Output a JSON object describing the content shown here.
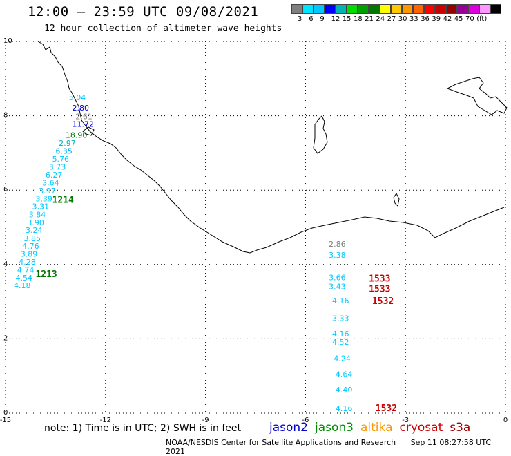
{
  "header": {
    "title": "12:00 – 23:59 UTC 09/08/2021",
    "subtitle": "12 hour collection of altimeter wave heights"
  },
  "scale": {
    "colors": [
      "#7f7f7f",
      "#00e5ff",
      "#00c8ff",
      "#0000ff",
      "#00b4b4",
      "#00dc00",
      "#00a000",
      "#007800",
      "#ffff00",
      "#ffc800",
      "#ff9600",
      "#ff6400",
      "#ff0000",
      "#c80000",
      "#960000",
      "#960096",
      "#dc00dc",
      "#ff96ff",
      "#000000"
    ],
    "labels": [
      "3",
      "6",
      "9",
      "12",
      "15",
      "18",
      "21",
      "24",
      "27",
      "30",
      "33",
      "36",
      "39",
      "42",
      "45",
      "70",
      "(ft)"
    ]
  },
  "axes": {
    "x_ticks": [
      "-15",
      "-12",
      "-9",
      "-6",
      "-3",
      "0"
    ],
    "y_ticks": [
      "0",
      "2",
      "4",
      "6",
      "8",
      "10"
    ]
  },
  "chart_data": {
    "type": "scatter",
    "xlim": [
      -15,
      0
    ],
    "ylim": [
      0,
      10
    ],
    "grid": true,
    "wave_heights": [
      {
        "lon": -13.1,
        "lat": 8.42,
        "label": "5.04",
        "color": "#00c8ff"
      },
      {
        "lon": -13.0,
        "lat": 8.14,
        "label": "2.80",
        "color": "#0000c8"
      },
      {
        "lon": -12.9,
        "lat": 7.91,
        "label": "2.61",
        "color": "#7f7f7f"
      },
      {
        "lon": -13.0,
        "lat": 7.7,
        "label": "11.72",
        "color": "#0000ff"
      },
      {
        "lon": -13.2,
        "lat": 7.41,
        "label": "18.90",
        "color": "#007800"
      },
      {
        "lon": -13.4,
        "lat": 7.19,
        "label": "2.97",
        "color": "#00b4b4"
      },
      {
        "lon": -13.5,
        "lat": 6.98,
        "label": "6.35",
        "color": "#00b4ff"
      },
      {
        "lon": -13.6,
        "lat": 6.77,
        "label": "5.76",
        "color": "#00c8ff"
      },
      {
        "lon": -13.7,
        "lat": 6.55,
        "label": "3.73",
        "color": "#00c8ff"
      },
      {
        "lon": -13.8,
        "lat": 6.34,
        "label": "6.27",
        "color": "#00c8ff"
      },
      {
        "lon": -13.9,
        "lat": 6.12,
        "label": "3.64",
        "color": "#00c8ff"
      },
      {
        "lon": -14.0,
        "lat": 5.91,
        "label": "3.97",
        "color": "#00c8ff"
      },
      {
        "lon": -14.1,
        "lat": 5.7,
        "label": "3.39",
        "color": "#00c8ff"
      },
      {
        "lon": -14.2,
        "lat": 5.49,
        "label": "3.31",
        "color": "#00c8ff"
      },
      {
        "lon": -14.3,
        "lat": 5.27,
        "label": "3.84",
        "color": "#00c8ff"
      },
      {
        "lon": -14.35,
        "lat": 5.06,
        "label": "3.90",
        "color": "#00c8ff"
      },
      {
        "lon": -14.4,
        "lat": 4.85,
        "label": "3.24",
        "color": "#00c8ff"
      },
      {
        "lon": -14.45,
        "lat": 4.63,
        "label": "3.85",
        "color": "#00c8ff"
      },
      {
        "lon": -14.5,
        "lat": 4.42,
        "label": "4.76",
        "color": "#00c8ff"
      },
      {
        "lon": -14.55,
        "lat": 4.21,
        "label": "3.89",
        "color": "#00c8ff"
      },
      {
        "lon": -14.6,
        "lat": 4.0,
        "label": "4.28",
        "color": "#00c8ff"
      },
      {
        "lon": -14.65,
        "lat": 3.78,
        "label": "4.74",
        "color": "#00c8ff"
      },
      {
        "lon": -14.7,
        "lat": 3.57,
        "label": "4.54",
        "color": "#00c8ff"
      },
      {
        "lon": -14.75,
        "lat": 3.36,
        "label": "4.18",
        "color": "#00c8ff"
      },
      {
        "lon": -5.3,
        "lat": 4.48,
        "label": "2.86",
        "color": "#7f7f7f"
      },
      {
        "lon": -5.3,
        "lat": 4.18,
        "label": "3.38",
        "color": "#00c8ff"
      },
      {
        "lon": -5.3,
        "lat": 3.58,
        "label": "3.66",
        "color": "#00c8ff"
      },
      {
        "lon": -5.3,
        "lat": 3.34,
        "label": "3.43",
        "color": "#00c8ff"
      },
      {
        "lon": -5.2,
        "lat": 2.96,
        "label": "4.16",
        "color": "#00c8ff"
      },
      {
        "lon": -5.2,
        "lat": 2.48,
        "label": "3.33",
        "color": "#00c8ff"
      },
      {
        "lon": -5.2,
        "lat": 2.06,
        "label": "4.16",
        "color": "#00c8ff"
      },
      {
        "lon": -5.2,
        "lat": 1.84,
        "label": "4.52",
        "color": "#00c8ff"
      },
      {
        "lon": -5.15,
        "lat": 1.4,
        "label": "4.24",
        "color": "#00c8ff"
      },
      {
        "lon": -5.1,
        "lat": 0.98,
        "label": "4.64",
        "color": "#00c8ff"
      },
      {
        "lon": -5.1,
        "lat": 0.56,
        "label": "4.40",
        "color": "#00c8ff"
      },
      {
        "lon": -5.1,
        "lat": 0.06,
        "label": "4.16",
        "color": "#00c8ff"
      }
    ],
    "pass_times": [
      {
        "lon": -13.6,
        "lat": 5.66,
        "label": "1214",
        "color": "#007800"
      },
      {
        "lon": -14.1,
        "lat": 3.66,
        "label": "1213",
        "color": "#007800"
      },
      {
        "lon": -4.1,
        "lat": 3.54,
        "label": "1533",
        "color": "#c80000"
      },
      {
        "lon": -4.1,
        "lat": 3.26,
        "label": "1533",
        "color": "#c80000"
      },
      {
        "lon": -4.0,
        "lat": 2.94,
        "label": "1532",
        "color": "#c80000"
      },
      {
        "lon": -3.9,
        "lat": 0.06,
        "label": "1532",
        "color": "#c80000"
      }
    ]
  },
  "footer": {
    "note": "note: 1) Time is in UTC; 2) SWH is in feet",
    "legend": [
      {
        "label": "jason2",
        "color": "#0000c8"
      },
      {
        "label": "jason3",
        "color": "#008c00"
      },
      {
        "label": "altika",
        "color": "#ff9600"
      },
      {
        "label": "cryosat",
        "color": "#c80000"
      },
      {
        "label": "s3a",
        "color": "#960000"
      }
    ],
    "credit": "NOAA/NESDIS Center for Satellite Applications and Research",
    "timestamp": "Sep 11 08:27:58 UTC 2021"
  }
}
